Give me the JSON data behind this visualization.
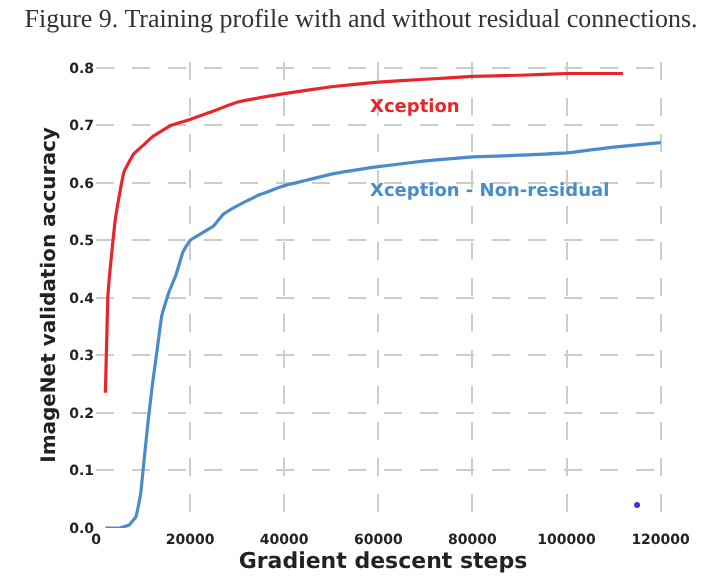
{
  "chart_data": {
    "type": "line",
    "title": "Figure 9. Training profile with and without residual connections.",
    "xlabel": "Gradient descent steps",
    "ylabel": "ImageNet validation accuracy",
    "series": [
      {
        "name": "Xception",
        "color": "#e8252b",
        "x": [
          2000,
          2500,
          3000,
          4000,
          5000,
          6000,
          8000,
          10000,
          12000,
          16000,
          20000,
          25000,
          30000,
          40000,
          50000,
          60000,
          70000,
          80000,
          90000,
          100000,
          112000
        ],
        "values": [
          0.235,
          0.4,
          0.45,
          0.53,
          0.58,
          0.62,
          0.65,
          0.665,
          0.68,
          0.7,
          0.71,
          0.725,
          0.74,
          0.755,
          0.767,
          0.775,
          0.78,
          0.785,
          0.787,
          0.79,
          0.79
        ]
      },
      {
        "name": "Xception - Non-residual",
        "color": "#4a8cc8",
        "x": [
          2000,
          5000,
          7000,
          8500,
          9500,
          10000,
          11000,
          12000,
          13000,
          14000,
          15500,
          17000,
          18500,
          20000,
          23000,
          25000,
          27000,
          30000,
          35000,
          40000,
          45000,
          50000,
          60000,
          70000,
          80000,
          90000,
          100000,
          110000,
          120000
        ],
        "values": [
          0.0,
          0.0,
          0.005,
          0.02,
          0.06,
          0.1,
          0.18,
          0.25,
          0.31,
          0.37,
          0.41,
          0.44,
          0.48,
          0.5,
          0.515,
          0.525,
          0.545,
          0.56,
          0.58,
          0.595,
          0.605,
          0.615,
          0.628,
          0.638,
          0.645,
          0.648,
          0.652,
          0.662,
          0.67
        ]
      },
      {
        "type": "scatter",
        "color": "#3a3ad0",
        "x": [
          115000
        ],
        "values": [
          0.04
        ]
      }
    ],
    "xlim": [
      0,
      122000
    ],
    "xticks": [
      0,
      20000,
      40000,
      60000,
      80000,
      100000,
      120000
    ],
    "ylim": [
      0,
      0.81
    ],
    "yticks": [
      {
        "value": 0,
        "label": "0.0"
      },
      0.1,
      0.2,
      0.3,
      0.4,
      0.5,
      0.6,
      0.7,
      0.8
    ],
    "grid": true,
    "legend": false
  }
}
